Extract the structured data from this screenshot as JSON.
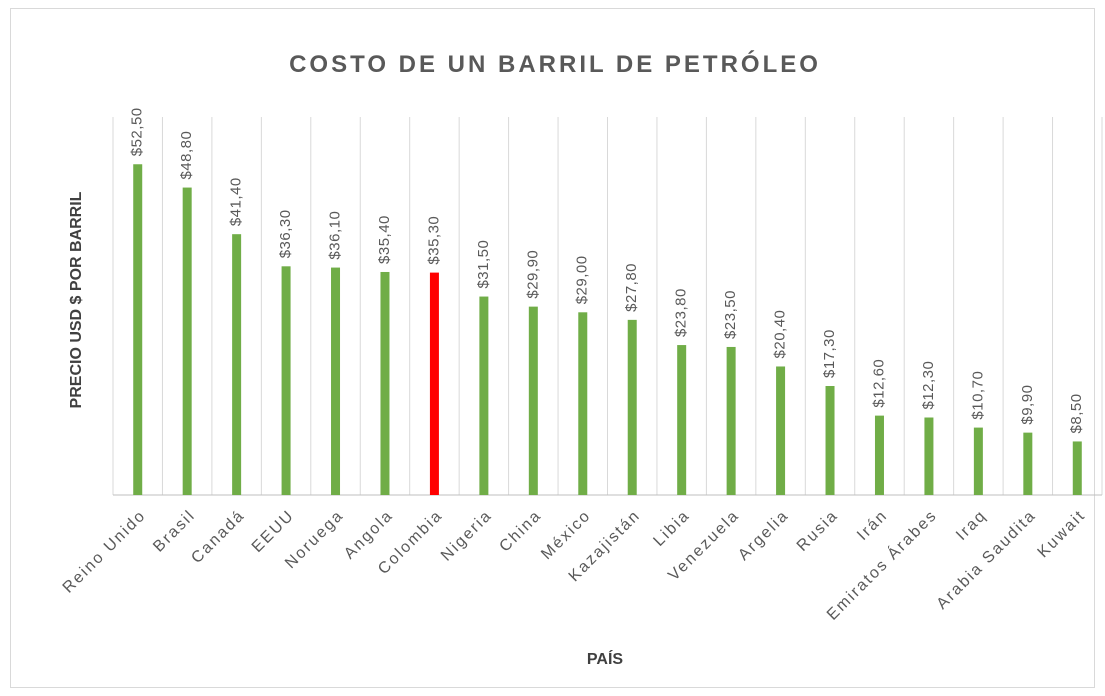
{
  "chart_data": {
    "type": "bar",
    "title": "COSTO DE UN BARRIL DE PETRÓLEO",
    "x_label": "PAÍS",
    "y_label": "PRECIO USD $ POR BARRIL",
    "categories": [
      "Reino Unido",
      "Brasil",
      "Canadá",
      "EEUU",
      "Noruega",
      "Angola",
      "Colombia",
      "Nigeria",
      "China",
      "México",
      "Kazajistán",
      "Libia",
      "Venezuela",
      "Argelia",
      "Rusia",
      "Irán",
      "Emiratos Árabes",
      "Iraq",
      "Arabia Saudita",
      "Kuwait"
    ],
    "values": [
      52.5,
      48.8,
      41.4,
      36.3,
      36.1,
      35.4,
      35.3,
      31.5,
      29.9,
      29.0,
      27.8,
      23.8,
      23.5,
      20.4,
      17.3,
      12.6,
      12.3,
      10.7,
      9.9,
      8.5
    ],
    "value_labels": [
      "$52,50",
      "$48,80",
      "$41,40",
      "$36,30",
      "$36,10",
      "$35,40",
      "$35,30",
      "$31,50",
      "$29,90",
      "$29,00",
      "$27,80",
      "$23,80",
      "$23,50",
      "$20,40",
      "$17,30",
      "$12,60",
      "$12,30",
      "$10,70",
      "$9,90",
      "$8,50"
    ],
    "colors": [
      "#70ad47",
      "#70ad47",
      "#70ad47",
      "#70ad47",
      "#70ad47",
      "#70ad47",
      "#ff0000",
      "#70ad47",
      "#70ad47",
      "#70ad47",
      "#70ad47",
      "#70ad47",
      "#70ad47",
      "#70ad47",
      "#70ad47",
      "#70ad47",
      "#70ad47",
      "#70ad47",
      "#70ad47",
      "#70ad47"
    ],
    "ylim": [
      0,
      60
    ],
    "category_grid": true
  }
}
